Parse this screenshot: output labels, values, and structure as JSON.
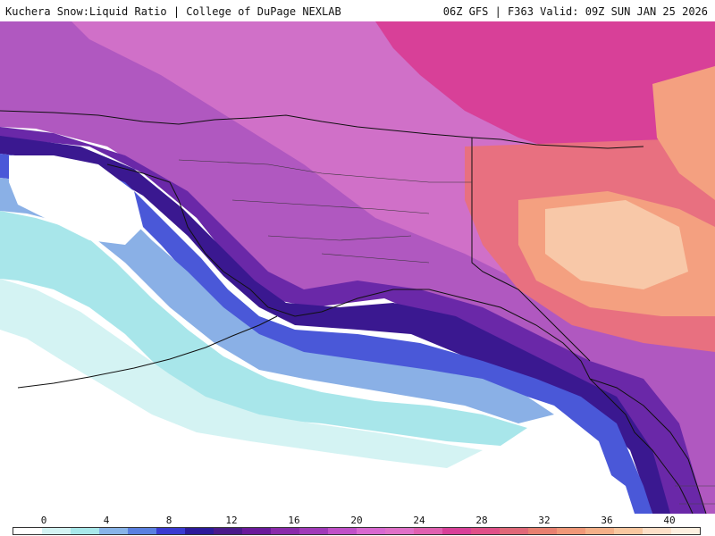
{
  "header": {
    "left": "Kuchera Snow:Liquid Ratio | College of DuPage NEXLAB",
    "right": "06Z GFS | F363 Valid: 09Z SUN JAN 25 2026"
  },
  "legend": {
    "ticks": [
      "0",
      "4",
      "8",
      "12",
      "16",
      "20",
      "24",
      "28",
      "32",
      "36",
      "40"
    ],
    "colors": [
      "#ffffff",
      "#d4f3f3",
      "#a8e8ea",
      "#88b4e8",
      "#5a80e0",
      "#3a3ad0",
      "#2c1a9a",
      "#4a1a8a",
      "#6a1a9a",
      "#8a2aaa",
      "#a03ab8",
      "#c050c8",
      "#d868d0",
      "#e070c8",
      "#e060b0",
      "#d84098",
      "#e05088",
      "#e06878",
      "#e88070",
      "#f09878",
      "#f4b088",
      "#f8c8a0",
      "#fce0c8",
      "#fdf0e0"
    ]
  },
  "map": {
    "colors": {
      "ocean": "#ffffff",
      "light_cyan": "#b8ecee",
      "cyan": "#a0e2e8",
      "light_blue": "#8ab0e6",
      "blue": "#4a58d8",
      "dark_blue": "#3020b0",
      "deep_purple": "#4a1890",
      "purple": "#6a28a8",
      "violet": "#9040b8",
      "orchid": "#c060c8",
      "pink": "#d868c8",
      "magenta": "#d84098",
      "salmon": "#e87080",
      "peach": "#f4a080",
      "light_peach": "#f8c8a8",
      "border": "#111111"
    }
  }
}
